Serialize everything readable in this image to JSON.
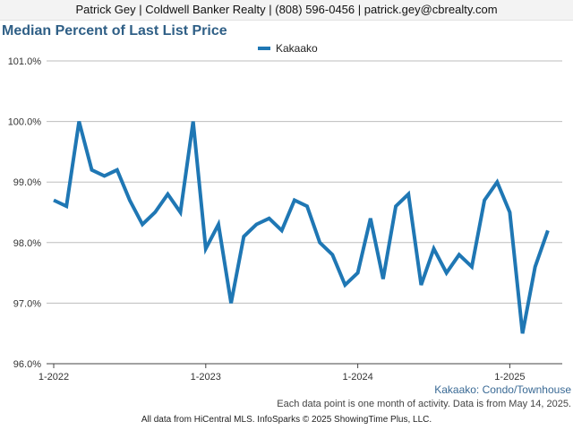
{
  "header": {
    "contact": "Patrick Gey | Coldwell Banker Realty | (808) 596-0456 | patrick.gey@cbrealty.com"
  },
  "chart_data": {
    "type": "line",
    "title": "Median Percent of Last List Price",
    "legend": [
      "Kakaako"
    ],
    "legend_position": "top-center",
    "grid": true,
    "x": [
      "2022-01",
      "2022-02",
      "2022-03",
      "2022-04",
      "2022-05",
      "2022-06",
      "2022-07",
      "2022-08",
      "2022-09",
      "2022-10",
      "2022-11",
      "2022-12",
      "2023-01",
      "2023-02",
      "2023-03",
      "2023-04",
      "2023-05",
      "2023-06",
      "2023-07",
      "2023-08",
      "2023-09",
      "2023-10",
      "2023-11",
      "2023-12",
      "2024-01",
      "2024-02",
      "2024-03",
      "2024-04",
      "2024-05",
      "2024-06",
      "2024-07",
      "2024-08",
      "2024-09",
      "2024-10",
      "2024-11",
      "2024-12",
      "2025-01",
      "2025-02",
      "2025-03",
      "2025-04"
    ],
    "x_tick_labels": [
      "1-2022",
      "1-2023",
      "1-2024",
      "1-2025"
    ],
    "y_tick_labels": [
      "96.0%",
      "97.0%",
      "98.0%",
      "99.0%",
      "100.0%",
      "101.0%"
    ],
    "ylim": [
      96.0,
      101.0
    ],
    "series": [
      {
        "name": "Kakaako",
        "color": "#1f77b4",
        "values": [
          98.7,
          98.6,
          100.0,
          99.2,
          99.1,
          99.2,
          98.7,
          98.3,
          98.5,
          98.8,
          98.5,
          100.0,
          97.9,
          98.3,
          97.0,
          98.1,
          98.3,
          98.4,
          98.2,
          98.7,
          98.6,
          98.0,
          97.8,
          97.3,
          97.5,
          98.4,
          97.4,
          98.6,
          98.8,
          97.3,
          97.9,
          97.5,
          97.8,
          97.6,
          98.7,
          99.0,
          98.5,
          96.5,
          97.6,
          98.2
        ]
      }
    ],
    "subtitle": "Kakaako: Condo/Townhouse",
    "note": "Each data point is one month of activity. Data is from May 14, 2025."
  },
  "footer": {
    "text": "All data from HiCentral MLS. InfoSparks © 2025 ShowingTime Plus, LLC."
  }
}
